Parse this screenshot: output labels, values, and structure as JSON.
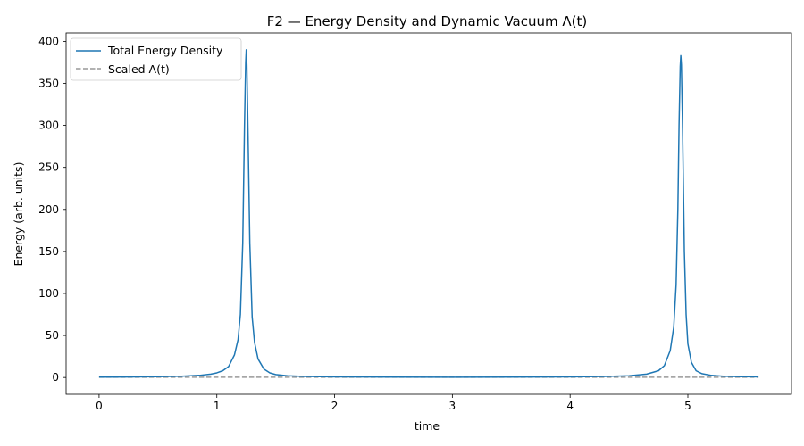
{
  "chart_data": {
    "type": "line",
    "title": "F2 — Energy Density and Dynamic Vacuum Λ(t)",
    "xlabel": "time",
    "ylabel": "Energy (arb. units)",
    "xlim": [
      -0.28,
      5.88
    ],
    "ylim": [
      -20,
      410
    ],
    "xticks": [
      0,
      1,
      2,
      3,
      4,
      5
    ],
    "yticks": [
      0,
      50,
      100,
      150,
      200,
      250,
      300,
      350,
      400
    ],
    "grid": false,
    "legend_position": "top-left",
    "series": [
      {
        "name": "Total Energy Density",
        "color": "#1f77b4",
        "style": "solid",
        "x": [
          0,
          0.25,
          0.5,
          0.7,
          0.85,
          0.95,
          1.0,
          1.05,
          1.1,
          1.15,
          1.18,
          1.2,
          1.22,
          1.235,
          1.245,
          1.25,
          1.255,
          1.265,
          1.28,
          1.3,
          1.32,
          1.35,
          1.4,
          1.45,
          1.5,
          1.6,
          1.75,
          2.0,
          2.5,
          3.0,
          3.5,
          4.0,
          4.3,
          4.5,
          4.65,
          4.75,
          4.8,
          4.85,
          4.88,
          4.9,
          4.915,
          4.925,
          4.935,
          4.94,
          4.945,
          4.955,
          4.97,
          4.985,
          5.0,
          5.03,
          5.07,
          5.12,
          5.2,
          5.3,
          5.45,
          5.6
        ],
        "y": [
          0.4,
          0.6,
          1.0,
          1.5,
          2.5,
          4.0,
          5.5,
          8.0,
          13.0,
          27.0,
          45.0,
          75.0,
          160.0,
          300.0,
          375.0,
          390.0,
          372.0,
          290.0,
          160.0,
          72.0,
          42.0,
          22.0,
          10.0,
          5.5,
          3.5,
          2.0,
          1.2,
          0.7,
          0.4,
          0.3,
          0.4,
          0.7,
          1.2,
          2.0,
          4.0,
          8.0,
          14.0,
          32.0,
          60.0,
          110.0,
          200.0,
          300.0,
          370.0,
          383.0,
          372.0,
          295.0,
          150.0,
          75.0,
          40.0,
          18.0,
          8.0,
          4.5,
          2.5,
          1.5,
          1.0,
          0.7
        ]
      },
      {
        "name": "Scaled Λ(t)",
        "color": "#999999",
        "style": "dashed",
        "x": [
          0,
          5.6
        ],
        "y": [
          0.3,
          0.3
        ]
      }
    ]
  }
}
